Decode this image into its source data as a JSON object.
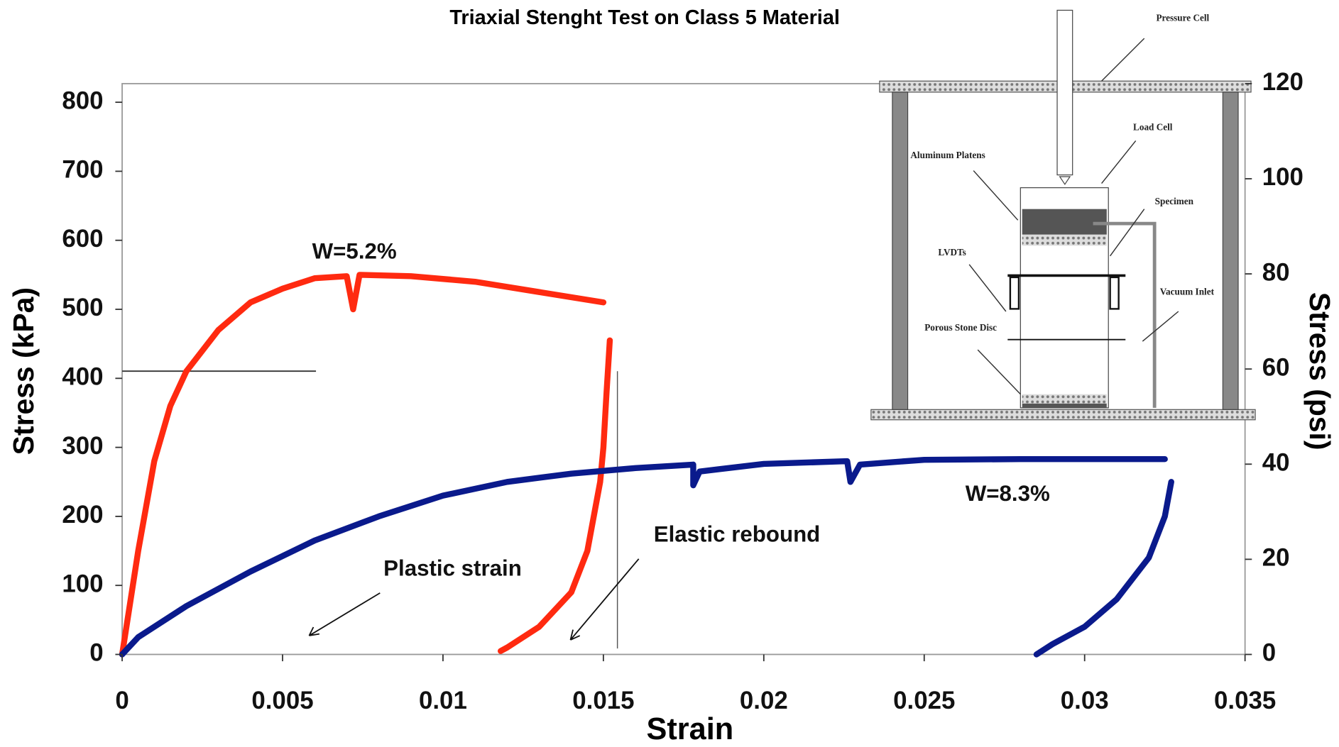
{
  "chart_data": {
    "type": "line",
    "title": "Triaxial Stenght Test on Class 5 Material",
    "x_label": "Strain",
    "y_label": "Stress (kPa)",
    "y2_label": "Stress (psi)",
    "xlim": [
      0,
      0.035
    ],
    "xticks": [
      0,
      0.005,
      0.01,
      0.015,
      0.02,
      0.025,
      0.03,
      0.035
    ],
    "ylim": [
      0,
      827
    ],
    "yticks": [
      0,
      100,
      200,
      300,
      400,
      500,
      600,
      700,
      800
    ],
    "y2lim": [
      0,
      120
    ],
    "y2ticks": [
      0,
      20,
      40,
      60,
      80,
      100,
      120
    ],
    "annotations": [
      "Plastic strain",
      "Elastic rebound"
    ],
    "diagram_labels": [
      "Pressure Cell",
      "Load Cell",
      "Aluminum Platens",
      "Specimen",
      "LVDTs",
      "Vacuum Inlet",
      "Porous Stone Disc"
    ],
    "series": [
      {
        "name": "W=5.2%",
        "color": "#ff2a10",
        "x": [
          0,
          0.0005,
          0.001,
          0.0015,
          0.002,
          0.003,
          0.004,
          0.005,
          0.006,
          0.007,
          0.0072,
          0.0074,
          0.009,
          0.011,
          0.013,
          0.015,
          null,
          0.0152,
          0.0151,
          0.015,
          0.0149,
          0.0145,
          0.014,
          0.013,
          0.012,
          0.0118
        ],
        "values": [
          0,
          150,
          280,
          360,
          410,
          470,
          510,
          530,
          545,
          548,
          500,
          550,
          548,
          540,
          525,
          510,
          null,
          455,
          380,
          300,
          250,
          150,
          90,
          40,
          10,
          5
        ]
      },
      {
        "name": "W=8.3%",
        "color": "#0a1a8c",
        "x": [
          0,
          0.0005,
          0.002,
          0.004,
          0.006,
          0.008,
          0.01,
          0.012,
          0.014,
          0.016,
          0.0178,
          0.0178,
          0.018,
          0.02,
          0.0226,
          0.0227,
          0.023,
          0.025,
          0.028,
          0.0325,
          null,
          0.0327,
          0.0325,
          0.032,
          0.031,
          0.03,
          0.029,
          0.0285
        ],
        "values": [
          0,
          25,
          70,
          120,
          165,
          200,
          230,
          250,
          262,
          270,
          275,
          245,
          265,
          276,
          280,
          250,
          275,
          282,
          283,
          283,
          null,
          250,
          200,
          140,
          80,
          40,
          15,
          0
        ]
      }
    ]
  }
}
